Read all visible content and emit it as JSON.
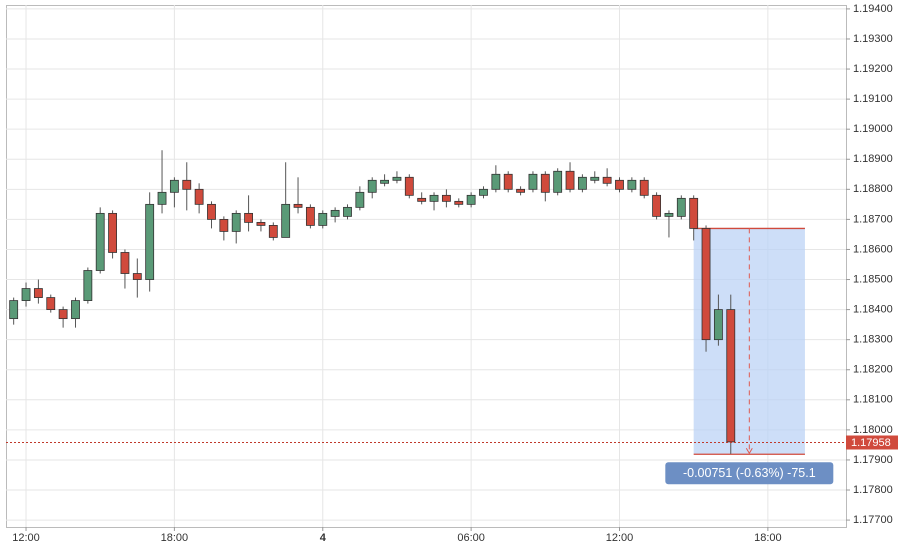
{
  "chart_data": {
    "type": "candlestick",
    "x": [
      11.5,
      12,
      12.5,
      13,
      13.5,
      14,
      14.5,
      15,
      15.5,
      16,
      16.5,
      17,
      17.5,
      18,
      18.5,
      19,
      19.5,
      20,
      20.5,
      21,
      21.5,
      22,
      22.5,
      23,
      23.5,
      24,
      24.5,
      25,
      25.5,
      26,
      26.5,
      27,
      27.5,
      28,
      28.5,
      29,
      29.5,
      30,
      30.5,
      31,
      31.5,
      32,
      32.5,
      33,
      33.5,
      34,
      34.5,
      35,
      35.5,
      36,
      36.5,
      37,
      37.5,
      38,
      38.5,
      39,
      39.5,
      40,
      40.5
    ],
    "open": [
      1.1837,
      1.1843,
      1.1847,
      1.1844,
      1.184,
      1.1837,
      1.1843,
      1.1853,
      1.1872,
      1.1859,
      1.1852,
      1.185,
      1.1875,
      1.1879,
      1.1883,
      1.188,
      1.1875,
      1.187,
      1.1866,
      1.1872,
      1.1869,
      1.1868,
      1.1864,
      1.1875,
      1.1874,
      1.1868,
      1.1871,
      1.1871,
      1.1874,
      1.1879,
      1.1882,
      1.1883,
      1.1884,
      1.1877,
      1.1876,
      1.1878,
      1.1876,
      1.1875,
      1.1878,
      1.188,
      1.1885,
      1.188,
      1.188,
      1.1885,
      1.1879,
      1.1886,
      1.188,
      1.1883,
      1.1884,
      1.1883,
      1.188,
      1.1883,
      1.1878,
      1.1871,
      1.1871,
      1.1877,
      1.1867,
      1.183,
      1.184
    ],
    "high": [
      1.1844,
      1.1849,
      1.185,
      1.1845,
      1.1841,
      1.1844,
      1.1854,
      1.1874,
      1.1873,
      1.186,
      1.1857,
      1.1879,
      1.1893,
      1.1884,
      1.1889,
      1.1882,
      1.1876,
      1.1871,
      1.1873,
      1.1878,
      1.187,
      1.1869,
      1.1889,
      1.1884,
      1.1875,
      1.1873,
      1.1874,
      1.1875,
      1.1881,
      1.1884,
      1.1885,
      1.1886,
      1.1885,
      1.1879,
      1.1879,
      1.188,
      1.1877,
      1.1879,
      1.1881,
      1.1888,
      1.1886,
      1.1881,
      1.1886,
      1.1886,
      1.1887,
      1.1889,
      1.1885,
      1.1886,
      1.1887,
      1.1884,
      1.1884,
      1.1884,
      1.1879,
      1.1873,
      1.1878,
      1.1878,
      1.1868,
      1.1845,
      1.1845
    ],
    "low": [
      1.1835,
      1.1841,
      1.1842,
      1.1839,
      1.1834,
      1.1834,
      1.1842,
      1.1852,
      1.1857,
      1.1847,
      1.1844,
      1.1846,
      1.1872,
      1.1874,
      1.1873,
      1.1872,
      1.1867,
      1.1863,
      1.1862,
      1.1866,
      1.1866,
      1.1863,
      1.1864,
      1.1872,
      1.1867,
      1.1867,
      1.1869,
      1.187,
      1.1873,
      1.1877,
      1.1881,
      1.1882,
      1.1877,
      1.1875,
      1.1873,
      1.1874,
      1.1874,
      1.1874,
      1.1877,
      1.1879,
      1.1879,
      1.1878,
      1.1879,
      1.1876,
      1.1878,
      1.1879,
      1.1879,
      1.1882,
      1.1881,
      1.1879,
      1.1879,
      1.1877,
      1.187,
      1.1864,
      1.187,
      1.1863,
      1.1826,
      1.1828,
      1.1792
    ],
    "close": [
      1.1843,
      1.1847,
      1.1844,
      1.184,
      1.1837,
      1.1843,
      1.1853,
      1.1872,
      1.1859,
      1.1852,
      1.185,
      1.1875,
      1.1879,
      1.1883,
      1.188,
      1.1875,
      1.187,
      1.1866,
      1.1872,
      1.1869,
      1.1868,
      1.1864,
      1.1875,
      1.1874,
      1.1868,
      1.1872,
      1.1873,
      1.1874,
      1.1879,
      1.1883,
      1.1883,
      1.1884,
      1.1878,
      1.1876,
      1.1878,
      1.1876,
      1.1875,
      1.1878,
      1.188,
      1.1885,
      1.188,
      1.1879,
      1.1885,
      1.1879,
      1.1886,
      1.188,
      1.1884,
      1.1884,
      1.1882,
      1.188,
      1.1883,
      1.1878,
      1.1871,
      1.1872,
      1.1877,
      1.1867,
      1.183,
      1.184,
      1.1796
    ],
    "up_color": "#5a9a77",
    "down_color": "#d04a3c",
    "xlim": [
      11.19,
      45.16
    ],
    "xticks": [
      {
        "value": 12,
        "label": "12:00"
      },
      {
        "value": 18,
        "label": "18:00"
      },
      {
        "value": 24,
        "label": "4"
      },
      {
        "value": 30,
        "label": "06:00"
      },
      {
        "value": 36,
        "label": "12:00"
      },
      {
        "value": 42,
        "label": "18:00"
      }
    ],
    "ylim": [
      1.17677,
      1.19413
    ],
    "yticks": [
      {
        "value": 1.177,
        "label": "1.17700"
      },
      {
        "value": 1.178,
        "label": "1.17800"
      },
      {
        "value": 1.179,
        "label": "1.17900"
      },
      {
        "value": 1.18,
        "label": "1.18000"
      },
      {
        "value": 1.181,
        "label": "1.18100"
      },
      {
        "value": 1.182,
        "label": "1.18200"
      },
      {
        "value": 1.183,
        "label": "1.18300"
      },
      {
        "value": 1.184,
        "label": "1.18400"
      },
      {
        "value": 1.185,
        "label": "1.18500"
      },
      {
        "value": 1.186,
        "label": "1.18600"
      },
      {
        "value": 1.187,
        "label": "1.18700"
      },
      {
        "value": 1.188,
        "label": "1.18800"
      },
      {
        "value": 1.189,
        "label": "1.18900"
      },
      {
        "value": 1.19,
        "label": "1.19000"
      },
      {
        "value": 1.191,
        "label": "1.19100"
      },
      {
        "value": 1.192,
        "label": "1.19200"
      },
      {
        "value": 1.193,
        "label": "1.19300"
      },
      {
        "value": 1.194,
        "label": "1.19400"
      }
    ],
    "grid": true,
    "last_price": {
      "value": 1.17958,
      "label": "1.17958"
    },
    "measure": {
      "from": 1.1867,
      "to": 1.17919,
      "x_from": 39,
      "x_to": 43.5,
      "label": "-0.00751 (-0.63%) -75.1"
    }
  }
}
